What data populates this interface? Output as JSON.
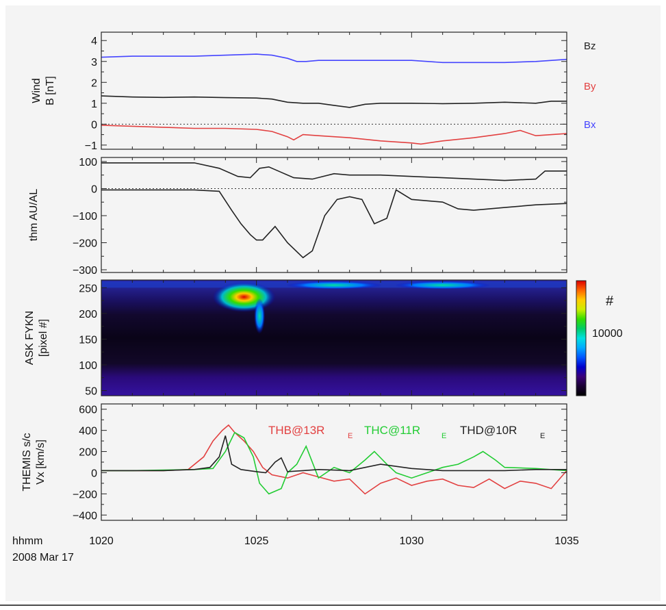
{
  "colors": {
    "background": "#f4f4f4",
    "axis": "#222222",
    "black_series": "#222222",
    "red_series": "#e24040",
    "blue_series": "#4444ff",
    "green_series": "#22cc33"
  },
  "time_axis": {
    "xlim": [
      1020,
      1035
    ],
    "ticks": [
      1020,
      1025,
      1030,
      1035
    ],
    "tick_labels": [
      "1020",
      "1025",
      "1030",
      "1035"
    ],
    "label_line1": "hhmm",
    "label_line2": "2008 Mar 17"
  },
  "colorbar": {
    "label": "#",
    "tick_label": "10000",
    "colors": [
      "#000000",
      "#1a0033",
      "#3a007a",
      "#0000cc",
      "#0055ff",
      "#00aaff",
      "#00e0e0",
      "#00cc66",
      "#33dd00",
      "#ccee00",
      "#ffcc00",
      "#ff6600",
      "#dd0000"
    ]
  },
  "chart_data": [
    {
      "type": "line",
      "ylabel_line1": "Wind",
      "ylabel_line2": "B [nT]",
      "ylim": [
        -1.2,
        4.4
      ],
      "yticks": [
        -1,
        0,
        1,
        2,
        3,
        4
      ],
      "ytick_labels": [
        "−1",
        "0",
        "1",
        "2",
        "3",
        "4"
      ],
      "zero_line": true,
      "series": [
        {
          "name": "Bz",
          "color": "#222222",
          "x": [
            1020,
            1021,
            1022,
            1023,
            1024,
            1025,
            1025.5,
            1026,
            1026.5,
            1027,
            1027.5,
            1028,
            1028.5,
            1029,
            1030,
            1031,
            1032,
            1033,
            1034,
            1034.5,
            1035
          ],
          "y": [
            1.35,
            1.3,
            1.28,
            1.3,
            1.27,
            1.25,
            1.2,
            1.05,
            1.0,
            1.0,
            0.9,
            0.8,
            0.95,
            1.0,
            1.0,
            0.98,
            1.0,
            1.05,
            1.0,
            1.1,
            1.1
          ]
        },
        {
          "name": "By",
          "color": "#e24040",
          "x": [
            1020,
            1021,
            1022,
            1023,
            1024,
            1025,
            1025.5,
            1026,
            1026.2,
            1026.5,
            1027,
            1028,
            1029,
            1030,
            1030.3,
            1031,
            1032,
            1033,
            1033.5,
            1034,
            1035
          ],
          "y": [
            -0.05,
            -0.1,
            -0.15,
            -0.2,
            -0.2,
            -0.25,
            -0.35,
            -0.6,
            -0.75,
            -0.5,
            -0.55,
            -0.65,
            -0.8,
            -0.9,
            -0.95,
            -0.8,
            -0.65,
            -0.45,
            -0.3,
            -0.55,
            -0.45
          ]
        },
        {
          "name": "Bx",
          "color": "#4444ff",
          "x": [
            1020,
            1021,
            1022,
            1023,
            1024,
            1025,
            1025.5,
            1026,
            1026.3,
            1026.6,
            1027,
            1028,
            1029,
            1030,
            1031,
            1032,
            1033,
            1034,
            1035
          ],
          "y": [
            3.2,
            3.25,
            3.25,
            3.25,
            3.3,
            3.35,
            3.3,
            3.15,
            3.0,
            3.0,
            3.05,
            3.05,
            3.05,
            3.05,
            2.95,
            2.95,
            2.95,
            3.0,
            3.1
          ]
        }
      ]
    },
    {
      "type": "line",
      "ylabel_line1": "thm AU/AL",
      "ylabel_line2": "",
      "ylim": [
        -310,
        115
      ],
      "yticks": [
        -300,
        -200,
        -100,
        0,
        100
      ],
      "ytick_labels": [
        "−300",
        "−200",
        "−100",
        "0",
        "100"
      ],
      "zero_line": true,
      "series": [
        {
          "name": "AU",
          "color": "#222222",
          "x": [
            1020,
            1021,
            1022,
            1023,
            1023.8,
            1024.4,
            1024.8,
            1025.1,
            1025.4,
            1025.8,
            1026.2,
            1026.8,
            1027.5,
            1028,
            1029,
            1030,
            1031,
            1032,
            1033,
            1034,
            1034.3,
            1035
          ],
          "y": [
            95,
            95,
            95,
            95,
            75,
            45,
            40,
            75,
            80,
            60,
            40,
            35,
            55,
            50,
            50,
            45,
            40,
            35,
            30,
            35,
            65,
            65
          ]
        },
        {
          "name": "AL",
          "color": "#222222",
          "x": [
            1020,
            1021,
            1022,
            1023,
            1023.8,
            1024.2,
            1024.5,
            1024.8,
            1025,
            1025.2,
            1025.6,
            1026,
            1026.5,
            1026.8,
            1027.2,
            1027.6,
            1028,
            1028.4,
            1028.8,
            1029.2,
            1029.5,
            1030,
            1031,
            1031.5,
            1032,
            1033,
            1034,
            1035
          ],
          "y": [
            -5,
            -5,
            -5,
            -5,
            -10,
            -80,
            -130,
            -170,
            -190,
            -190,
            -140,
            -200,
            -255,
            -230,
            -100,
            -40,
            -30,
            -40,
            -130,
            -110,
            -5,
            -40,
            -50,
            -75,
            -80,
            -70,
            -60,
            -55
          ]
        }
      ]
    },
    {
      "type": "heatmap",
      "ylabel_line1": "ASK FYKN",
      "ylabel_line2": "[pixel #]",
      "ylim": [
        40,
        265
      ],
      "yticks": [
        50,
        100,
        150,
        200,
        250
      ],
      "ytick_labels": [
        "50",
        "100",
        "150",
        "200",
        "250"
      ],
      "features": [
        {
          "x": 1024.6,
          "y": 232,
          "intensity": "high"
        },
        {
          "x": 1025.1,
          "y": 195,
          "intensity": "medium"
        },
        {
          "x": 1027.5,
          "y": 255,
          "intensity": "low"
        },
        {
          "x": 1031,
          "y": 255,
          "intensity": "low"
        }
      ]
    },
    {
      "type": "line",
      "ylabel_line1": "THEMIS s/c",
      "ylabel_line2": "Vx [km/s]",
      "ylim": [
        -450,
        650
      ],
      "yticks": [
        -400,
        -200,
        0,
        200,
        400,
        600
      ],
      "ytick_labels": [
        "−400",
        "−200",
        "0",
        "200",
        "400",
        "600"
      ],
      "zero_line": false,
      "series": [
        {
          "name": "THB@13R",
          "subscript": "E",
          "color": "#e24040",
          "x": [
            1020,
            1021,
            1022,
            1022.8,
            1023.3,
            1023.6,
            1023.9,
            1024.1,
            1024.3,
            1024.6,
            1024.9,
            1025.2,
            1025.5,
            1026,
            1026.5,
            1027,
            1027.5,
            1028,
            1028.5,
            1029,
            1029.5,
            1030,
            1030.5,
            1031,
            1031.5,
            1032,
            1032.5,
            1033,
            1033.5,
            1034,
            1034.5,
            1035
          ],
          "y": [
            20,
            20,
            20,
            30,
            150,
            300,
            400,
            450,
            380,
            300,
            200,
            50,
            -20,
            -50,
            0,
            -40,
            -80,
            -60,
            -200,
            -100,
            -50,
            -120,
            -80,
            -60,
            -120,
            -140,
            -60,
            -150,
            -80,
            -100,
            -150,
            20
          ]
        },
        {
          "name": "THC@11R",
          "subscript": "E",
          "color": "#22cc33",
          "x": [
            1020,
            1021,
            1022,
            1023,
            1023.6,
            1024,
            1024.3,
            1024.6,
            1024.9,
            1025.1,
            1025.4,
            1025.8,
            1026,
            1026.3,
            1026.6,
            1027,
            1027.5,
            1028,
            1028.5,
            1028.8,
            1029.2,
            1029.5,
            1030,
            1030.5,
            1031,
            1031.5,
            1032,
            1032.3,
            1032.7,
            1033,
            1034,
            1035
          ],
          "y": [
            20,
            20,
            25,
            30,
            40,
            200,
            380,
            330,
            150,
            -100,
            -200,
            -150,
            0,
            80,
            250,
            -50,
            50,
            0,
            120,
            200,
            80,
            0,
            -50,
            0,
            50,
            80,
            150,
            200,
            120,
            50,
            40,
            20
          ]
        },
        {
          "name": "THD@10R",
          "subscript": "E",
          "color": "#222222",
          "x": [
            1020,
            1021,
            1022,
            1023,
            1023.5,
            1023.8,
            1024,
            1024.2,
            1024.5,
            1025,
            1025.3,
            1025.6,
            1025.8,
            1026,
            1026.5,
            1027,
            1028,
            1029,
            1029.5,
            1030,
            1031,
            1032,
            1033,
            1034,
            1035
          ],
          "y": [
            20,
            20,
            20,
            30,
            50,
            150,
            350,
            80,
            30,
            10,
            0,
            100,
            140,
            10,
            20,
            30,
            20,
            80,
            60,
            40,
            20,
            20,
            20,
            30,
            30
          ]
        }
      ]
    }
  ]
}
